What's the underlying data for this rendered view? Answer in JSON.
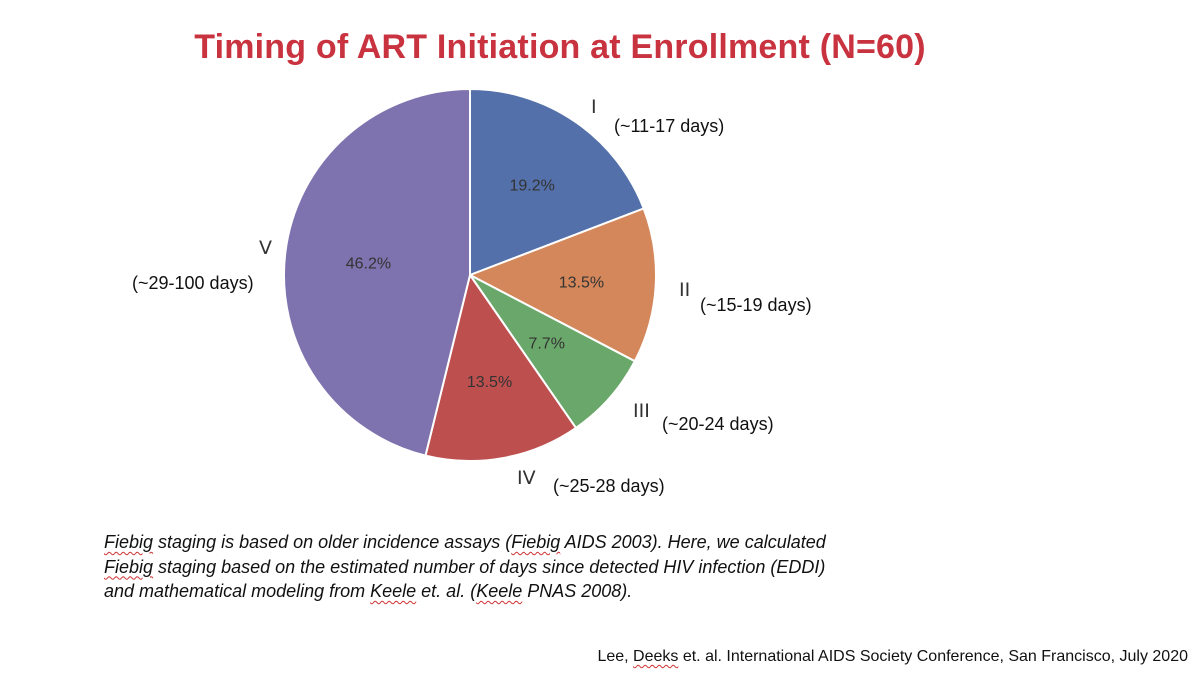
{
  "chart_data": {
    "type": "pie",
    "title_main": "Timing of ART Initiation at Enrollment",
    "title_n": "(N=60)",
    "start_angle_deg": 0,
    "direction": "clockwise",
    "slices": [
      {
        "stage": "I",
        "days": "(~11-17 days)",
        "label": "19.2%",
        "value": 19.2,
        "color": "#5470aa"
      },
      {
        "stage": "II",
        "days": "(~15-19 days)",
        "label": "13.5%",
        "value": 13.5,
        "color": "#d4875a"
      },
      {
        "stage": "III",
        "days": "(~20-24 days)",
        "label": "7.7%",
        "value": 7.7,
        "color": "#6aa76a"
      },
      {
        "stage": "IV",
        "days": "(~25-28 days)",
        "label": "13.5%",
        "value": 13.5,
        "color": "#bd4f4f"
      },
      {
        "stage": "V",
        "days": "(~29-100 days)",
        "label": "46.2%",
        "value": 46.2,
        "color": "#7e73ae"
      }
    ]
  },
  "footnote": {
    "line1": [
      "Fiebig",
      " staging is based on older incidence assays (",
      "Fiebig",
      " AIDS 2003). Here, we calculated"
    ],
    "line2": [
      "Fiebig",
      " staging based on the estimated number of days since detected HIV infection (EDDI)"
    ],
    "line3": [
      "and mathematical modeling from ",
      "Keele",
      " et. al. (",
      "Keele",
      " PNAS 2008)."
    ]
  },
  "citation": [
    "Lee, ",
    "Deeks",
    " et. al. International AIDS Society Conference, San Francisco, July 2020"
  ]
}
